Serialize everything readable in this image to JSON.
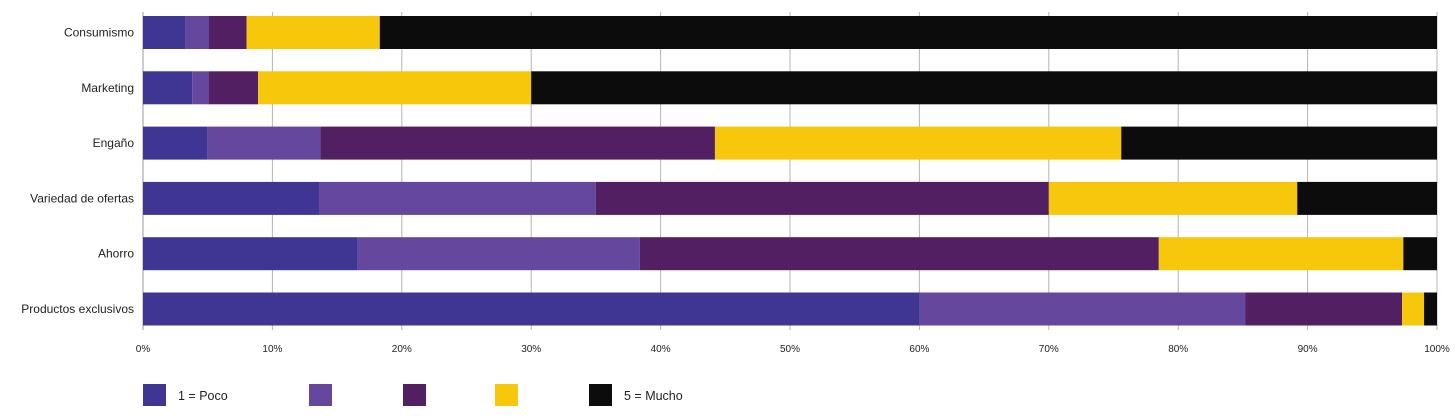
{
  "chart_data": {
    "type": "bar",
    "orientation": "horizontal",
    "stacked": "percent",
    "categories": [
      "Consumismo",
      "Marketing",
      "Engaño",
      "Variedad de ofertas",
      "Ahorro",
      "Productos exclusivos"
    ],
    "series": [
      {
        "name": "1 = Poco",
        "color": "#3f3694",
        "values": [
          3.3,
          3.8,
          5.0,
          13.6,
          16.6,
          60.0
        ]
      },
      {
        "name": "",
        "color": "#65479e",
        "values": [
          1.8,
          1.3,
          8.7,
          21.4,
          21.8,
          25.2
        ]
      },
      {
        "name": "",
        "color": "#521f62",
        "values": [
          2.9,
          3.8,
          30.5,
          35.0,
          40.1,
          12.1
        ]
      },
      {
        "name": "",
        "color": "#f7c70c",
        "values": [
          10.3,
          21.1,
          31.4,
          19.2,
          18.9,
          1.7
        ]
      },
      {
        "name": "5 = Mucho",
        "color": "#0c0c0c",
        "values": [
          81.7,
          70.0,
          24.4,
          10.8,
          2.6,
          1.0
        ]
      }
    ],
    "x_ticks": [
      "0%",
      "10%",
      "20%",
      "30%",
      "40%",
      "50%",
      "60%",
      "70%",
      "80%",
      "90%",
      "100%"
    ],
    "xlim": [
      0,
      100
    ],
    "grid": true,
    "legend": "bottom-left"
  }
}
